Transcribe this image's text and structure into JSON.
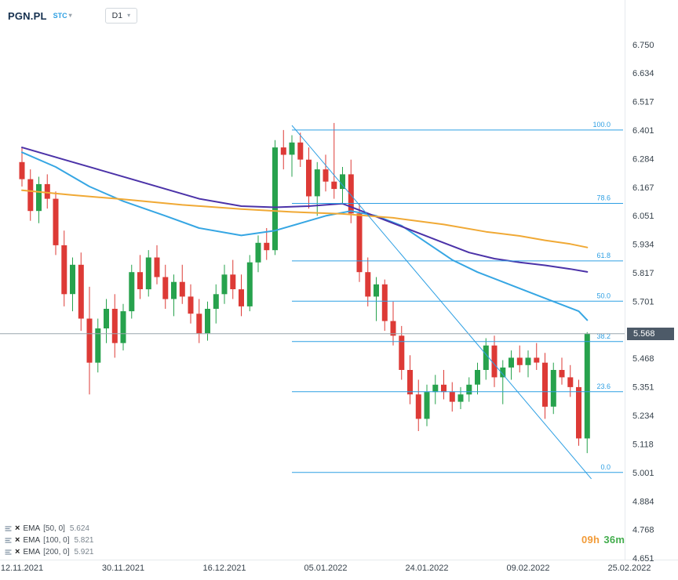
{
  "header": {
    "symbol": "PGN.PL",
    "indicator": "STC",
    "timeframe": "D1"
  },
  "icons": {
    "chevron_down": "▾",
    "close": "×"
  },
  "legend": {
    "items": [
      {
        "name": "EMA",
        "params": "[50, 0]",
        "value": "5.624"
      },
      {
        "name": "EMA",
        "params": "[100, 0]",
        "value": "5.821"
      },
      {
        "name": "EMA",
        "params": "[200, 0]",
        "value": "5.921"
      }
    ]
  },
  "countdown": {
    "hours": "09h",
    "minutes": "36m"
  },
  "chart_data": {
    "type": "candlestick",
    "symbol": "PGN.PL",
    "timeframe": "D1",
    "current_price": 5.568,
    "current_price_label": "5.568",
    "colors": {
      "bull": "#27a24d",
      "bear": "#dd3a36",
      "drawing": "#2d9fe3",
      "price_line": "#9aa6ad",
      "badge_bg": "#4d5a68"
    },
    "y_axis": {
      "ticks": [
        "6.750",
        "6.634",
        "6.517",
        "6.401",
        "6.284",
        "6.167",
        "6.051",
        "5.934",
        "5.817",
        "5.701",
        "5.468",
        "5.351",
        "5.234",
        "5.118",
        "5.001",
        "4.884",
        "4.768",
        "4.651"
      ]
    },
    "x_axis": {
      "ticks": [
        {
          "label": "12.11.2021",
          "index": 0
        },
        {
          "label": "30.11.2021",
          "index": 12
        },
        {
          "label": "16.12.2021",
          "index": 24
        },
        {
          "label": "05.01.2022",
          "index": 36
        },
        {
          "label": "24.01.2022",
          "index": 48
        },
        {
          "label": "09.02.2022",
          "index": 60
        },
        {
          "label": "25.02.2022",
          "index": 72
        }
      ]
    },
    "candles_format": "[date, open, high, low, close]",
    "candles": [
      [
        "12.11.2021",
        6.27,
        6.33,
        6.17,
        6.2
      ],
      [
        "15.11.2021",
        6.2,
        6.24,
        6.03,
        6.07
      ],
      [
        "16.11.2021",
        6.07,
        6.21,
        6.02,
        6.18
      ],
      [
        "17.11.2021",
        6.18,
        6.22,
        6.08,
        6.12
      ],
      [
        "18.11.2021",
        6.12,
        6.15,
        5.89,
        5.93
      ],
      [
        "19.11.2021",
        5.93,
        5.99,
        5.68,
        5.73
      ],
      [
        "22.11.2021",
        5.73,
        5.88,
        5.66,
        5.85
      ],
      [
        "23.11.2021",
        5.85,
        5.9,
        5.58,
        5.63
      ],
      [
        "24.11.2021",
        5.63,
        5.76,
        5.32,
        5.45
      ],
      [
        "25.11.2021",
        5.45,
        5.63,
        5.41,
        5.59
      ],
      [
        "26.11.2021",
        5.59,
        5.71,
        5.53,
        5.67
      ],
      [
        "29.11.2021",
        5.67,
        5.73,
        5.47,
        5.53
      ],
      [
        "30.11.2021",
        5.53,
        5.69,
        5.5,
        5.66
      ],
      [
        "01.12.2021",
        5.66,
        5.85,
        5.63,
        5.82
      ],
      [
        "02.12.2021",
        5.82,
        5.89,
        5.71,
        5.75
      ],
      [
        "03.12.2021",
        5.75,
        5.91,
        5.72,
        5.88
      ],
      [
        "06.12.2021",
        5.88,
        5.93,
        5.77,
        5.8
      ],
      [
        "07.12.2021",
        5.8,
        5.85,
        5.67,
        5.71
      ],
      [
        "08.12.2021",
        5.71,
        5.81,
        5.64,
        5.78
      ],
      [
        "09.12.2021",
        5.78,
        5.85,
        5.69,
        5.72
      ],
      [
        "10.12.2021",
        5.72,
        5.77,
        5.61,
        5.65
      ],
      [
        "13.12.2021",
        5.65,
        5.71,
        5.53,
        5.57
      ],
      [
        "14.12.2021",
        5.57,
        5.7,
        5.54,
        5.67
      ],
      [
        "15.12.2021",
        5.67,
        5.77,
        5.61,
        5.73
      ],
      [
        "16.12.2021",
        5.73,
        5.85,
        5.69,
        5.81
      ],
      [
        "17.12.2021",
        5.81,
        5.87,
        5.71,
        5.75
      ],
      [
        "20.12.2021",
        5.75,
        5.81,
        5.64,
        5.68
      ],
      [
        "21.12.2021",
        5.68,
        5.89,
        5.66,
        5.86
      ],
      [
        "22.12.2021",
        5.86,
        5.97,
        5.82,
        5.94
      ],
      [
        "23.12.2021",
        5.94,
        6.0,
        5.87,
        5.91
      ],
      [
        "27.12.2021",
        5.91,
        6.36,
        5.89,
        6.33
      ],
      [
        "28.12.2021",
        6.33,
        6.401,
        6.24,
        6.3
      ],
      [
        "29.12.2021",
        6.3,
        6.38,
        6.21,
        6.35
      ],
      [
        "30.12.2021",
        6.35,
        6.39,
        6.25,
        6.28
      ],
      [
        "03.01.2022",
        6.28,
        6.33,
        6.08,
        6.13
      ],
      [
        "04.01.2022",
        6.13,
        6.27,
        6.05,
        6.24
      ],
      [
        "05.01.2022",
        6.24,
        6.3,
        6.15,
        6.19
      ],
      [
        "07.01.2022",
        6.19,
        6.43,
        6.12,
        6.16
      ],
      [
        "10.01.2022",
        6.16,
        6.25,
        6.1,
        6.22
      ],
      [
        "11.01.2022",
        6.22,
        6.28,
        6.02,
        6.06
      ],
      [
        "12.01.2022",
        6.06,
        6.1,
        5.78,
        5.82
      ],
      [
        "13.01.2022",
        5.82,
        5.88,
        5.68,
        5.72
      ],
      [
        "14.01.2022",
        5.72,
        5.8,
        5.62,
        5.77
      ],
      [
        "17.01.2022",
        5.77,
        5.79,
        5.58,
        5.62
      ],
      [
        "18.01.2022",
        5.62,
        5.7,
        5.52,
        5.56
      ],
      [
        "19.01.2022",
        5.56,
        5.6,
        5.38,
        5.42
      ],
      [
        "20.01.2022",
        5.42,
        5.48,
        5.28,
        5.32
      ],
      [
        "21.01.2022",
        5.32,
        5.38,
        5.17,
        5.22
      ],
      [
        "24.01.2022",
        5.22,
        5.36,
        5.19,
        5.33
      ],
      [
        "25.01.2022",
        5.33,
        5.4,
        5.28,
        5.36
      ],
      [
        "26.01.2022",
        5.36,
        5.42,
        5.3,
        5.33
      ],
      [
        "27.01.2022",
        5.33,
        5.37,
        5.25,
        5.29
      ],
      [
        "28.01.2022",
        5.29,
        5.35,
        5.26,
        5.32
      ],
      [
        "31.01.2022",
        5.32,
        5.39,
        5.29,
        5.36
      ],
      [
        "01.02.2022",
        5.36,
        5.45,
        5.32,
        5.42
      ],
      [
        "02.02.2022",
        5.42,
        5.55,
        5.38,
        5.52
      ],
      [
        "03.02.2022",
        5.52,
        5.56,
        5.35,
        5.39
      ],
      [
        "04.02.2022",
        5.39,
        5.46,
        5.28,
        5.43
      ],
      [
        "07.02.2022",
        5.43,
        5.5,
        5.38,
        5.47
      ],
      [
        "08.02.2022",
        5.47,
        5.52,
        5.41,
        5.44
      ],
      [
        "09.02.2022",
        5.44,
        5.5,
        5.39,
        5.47
      ],
      [
        "10.02.2022",
        5.47,
        5.53,
        5.42,
        5.45
      ],
      [
        "11.02.2022",
        5.45,
        5.49,
        5.22,
        5.27
      ],
      [
        "14.02.2022",
        5.27,
        5.45,
        5.24,
        5.42
      ],
      [
        "15.02.2022",
        5.42,
        5.47,
        5.36,
        5.39
      ],
      [
        "16.02.2022",
        5.39,
        5.44,
        5.31,
        5.35
      ],
      [
        "17.02.2022",
        5.35,
        5.38,
        5.11,
        5.14
      ],
      [
        "18.02.2022",
        5.14,
        5.575,
        5.08,
        5.568
      ]
    ],
    "overlays": [
      {
        "name": "EMA 50",
        "period": 50,
        "color": "#36a6e3",
        "last_value": 5.624,
        "points": [
          [
            0,
            6.31
          ],
          [
            4,
            6.25
          ],
          [
            8,
            6.17
          ],
          [
            12,
            6.11
          ],
          [
            17,
            6.05
          ],
          [
            21,
            6.0
          ],
          [
            26,
            5.97
          ],
          [
            30,
            5.99
          ],
          [
            33,
            6.02
          ],
          [
            36,
            6.05
          ],
          [
            39,
            6.07
          ],
          [
            42,
            6.05
          ],
          [
            45,
            6.01
          ],
          [
            48,
            5.94
          ],
          [
            51,
            5.87
          ],
          [
            54,
            5.82
          ],
          [
            57,
            5.78
          ],
          [
            60,
            5.74
          ],
          [
            63,
            5.7
          ],
          [
            66,
            5.66
          ],
          [
            67,
            5.624
          ]
        ]
      },
      {
        "name": "EMA 100",
        "period": 100,
        "color": "#4b32a8",
        "last_value": 5.821,
        "points": [
          [
            0,
            6.33
          ],
          [
            5,
            6.28
          ],
          [
            9,
            6.24
          ],
          [
            13,
            6.2
          ],
          [
            17,
            6.16
          ],
          [
            21,
            6.12
          ],
          [
            26,
            6.09
          ],
          [
            30,
            6.085
          ],
          [
            34,
            6.09
          ],
          [
            38,
            6.1
          ],
          [
            41,
            6.06
          ],
          [
            44,
            6.02
          ],
          [
            47,
            5.98
          ],
          [
            50,
            5.94
          ],
          [
            53,
            5.9
          ],
          [
            56,
            5.875
          ],
          [
            59,
            5.86
          ],
          [
            62,
            5.848
          ],
          [
            65,
            5.833
          ],
          [
            67,
            5.821
          ]
        ]
      },
      {
        "name": "EMA 200",
        "period": 200,
        "color": "#f0a935",
        "last_value": 5.921,
        "points": [
          [
            0,
            6.155
          ],
          [
            6,
            6.135
          ],
          [
            12,
            6.118
          ],
          [
            19,
            6.095
          ],
          [
            26,
            6.078
          ],
          [
            32,
            6.066
          ],
          [
            38,
            6.058
          ],
          [
            44,
            6.042
          ],
          [
            50,
            6.015
          ],
          [
            55,
            5.985
          ],
          [
            59,
            5.968
          ],
          [
            62,
            5.95
          ],
          [
            65,
            5.935
          ],
          [
            67,
            5.921
          ]
        ]
      }
    ],
    "fibonacci": {
      "start_index": 32,
      "levels": [
        {
          "label": "100.0",
          "price": 6.401
        },
        {
          "label": "78.6",
          "price": 6.101
        },
        {
          "label": "61.8",
          "price": 5.866
        },
        {
          "label": "50.0",
          "price": 5.701
        },
        {
          "label": "38.2",
          "price": 5.536
        },
        {
          "label": "23.6",
          "price": 5.331
        },
        {
          "label": "0.0",
          "price": 5.001
        }
      ],
      "trendline": {
        "from": {
          "index": 32,
          "price": 6.42
        },
        "to": {
          "index": 67.5,
          "price": 4.975
        }
      }
    }
  }
}
